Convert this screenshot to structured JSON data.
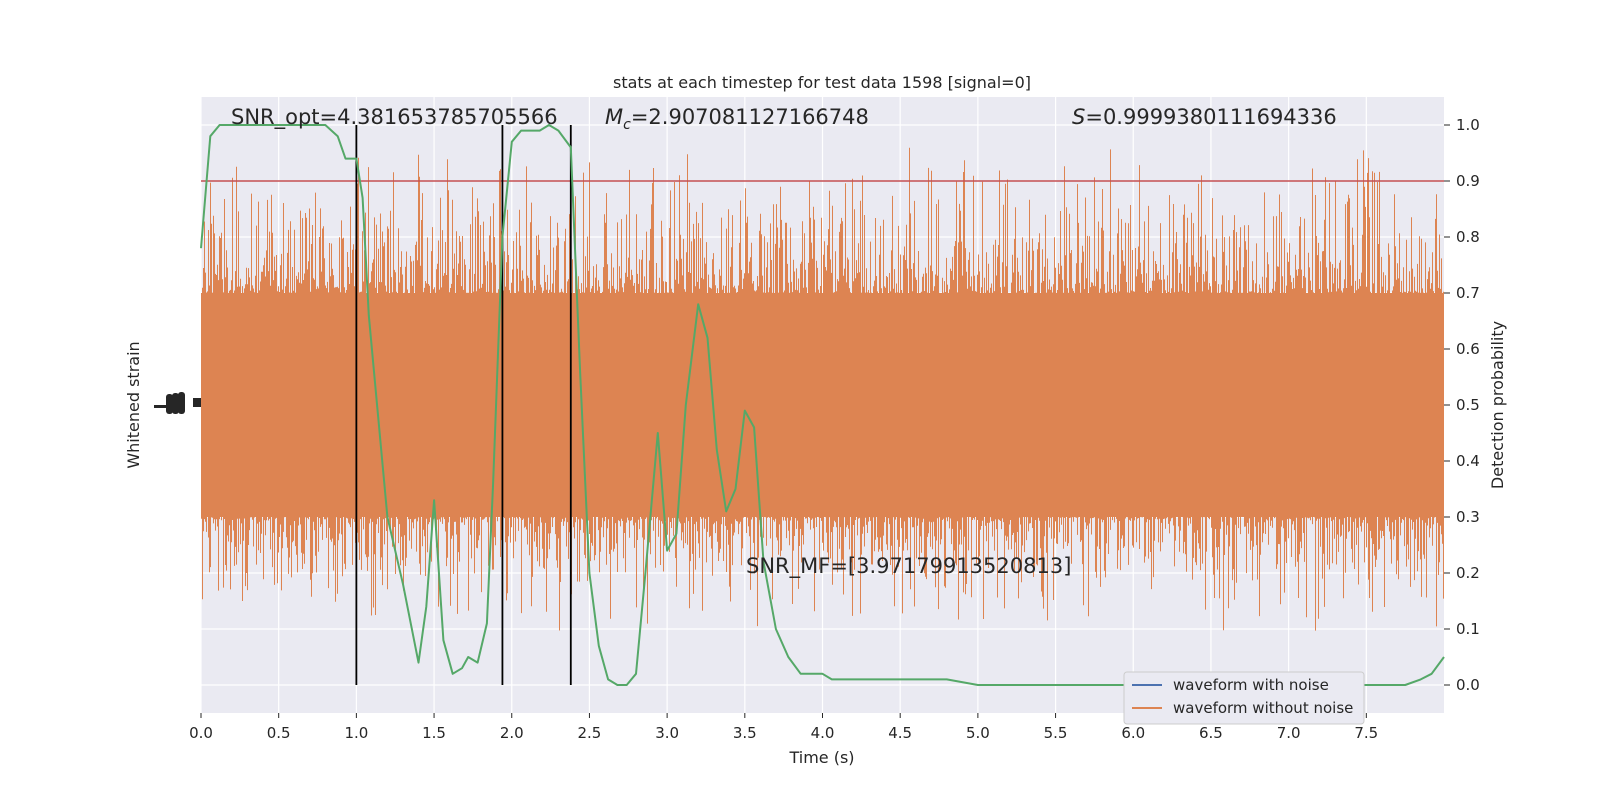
{
  "chart_data": {
    "type": "line",
    "title": "stats at each timestep for test data 1598 [signal=0]",
    "xlabel": "Time (s)",
    "ylabel_left": "Whitened strain",
    "ylabel_right": "Detection probability",
    "xlim": [
      0,
      8.0
    ],
    "ylim_right": [
      -0.05,
      1.05
    ],
    "x_ticks": [
      "0.0",
      "0.5",
      "1.0",
      "1.5",
      "2.0",
      "2.5",
      "3.0",
      "3.5",
      "4.0",
      "4.5",
      "5.0",
      "5.5",
      "6.0",
      "6.5",
      "7.0",
      "7.5"
    ],
    "y_ticks_right": [
      "0.0",
      "0.1",
      "0.2",
      "0.3",
      "0.4",
      "0.5",
      "0.6",
      "0.7",
      "0.8",
      "0.9",
      "1.0"
    ],
    "grid": true,
    "threshold": 0.9,
    "vlines": [
      1.0,
      1.94,
      2.38
    ],
    "annotations": {
      "snr_opt": "SNR_opt=4.381653785705566",
      "mc_symbol": "M",
      "mc_sub": "c",
      "mc_value": "=2.907081127166748",
      "s_symbol": "S",
      "s_value": "=0.9999380111694336",
      "snr_mf": "SNR_MF=[3.97179913520813]"
    },
    "legend": {
      "position": "lower-right",
      "entries": [
        "waveform with noise",
        "waveform without noise"
      ]
    },
    "series": [
      {
        "name": "waveform with noise",
        "color": "#4c72b0",
        "values": []
      },
      {
        "name": "waveform without noise",
        "color": "#dd8452",
        "noise_band": [
          0.3,
          0.7
        ],
        "spike_range": [
          0.08,
          0.98
        ]
      },
      {
        "name": "detection probability",
        "color": "#55a868",
        "x": [
          0.0,
          0.06,
          0.12,
          0.2,
          0.3,
          0.4,
          0.5,
          0.6,
          0.7,
          0.8,
          0.88,
          0.93,
          1.0,
          1.04,
          1.08,
          1.14,
          1.2,
          1.3,
          1.4,
          1.45,
          1.5,
          1.56,
          1.62,
          1.68,
          1.72,
          1.78,
          1.84,
          1.88,
          1.94,
          2.0,
          2.06,
          2.12,
          2.18,
          2.24,
          2.3,
          2.38,
          2.44,
          2.5,
          2.56,
          2.62,
          2.68,
          2.74,
          2.8,
          2.86,
          2.94,
          3.0,
          3.06,
          3.12,
          3.2,
          3.26,
          3.32,
          3.38,
          3.44,
          3.5,
          3.56,
          3.62,
          3.7,
          3.78,
          3.86,
          3.94,
          4.0,
          4.06,
          4.14,
          4.22,
          4.3,
          4.4,
          4.6,
          4.8,
          5.0,
          5.2,
          5.4,
          5.6,
          5.8,
          6.0,
          6.2,
          6.4,
          6.6,
          6.8,
          7.0,
          7.2,
          7.4,
          7.6,
          7.75,
          7.85,
          7.92,
          8.0
        ],
        "y": [
          0.78,
          0.98,
          1.0,
          1.0,
          1.0,
          1.0,
          1.0,
          1.0,
          1.0,
          1.0,
          0.98,
          0.94,
          0.94,
          0.87,
          0.66,
          0.48,
          0.3,
          0.18,
          0.04,
          0.14,
          0.33,
          0.08,
          0.02,
          0.03,
          0.05,
          0.04,
          0.11,
          0.36,
          0.8,
          0.97,
          0.99,
          0.99,
          0.99,
          1.0,
          0.99,
          0.96,
          0.56,
          0.2,
          0.07,
          0.01,
          0.0,
          0.0,
          0.02,
          0.2,
          0.45,
          0.24,
          0.27,
          0.5,
          0.68,
          0.62,
          0.42,
          0.31,
          0.35,
          0.49,
          0.46,
          0.22,
          0.1,
          0.05,
          0.02,
          0.02,
          0.02,
          0.01,
          0.01,
          0.01,
          0.01,
          0.01,
          0.01,
          0.01,
          0.0,
          0.0,
          0.0,
          0.0,
          0.0,
          0.0,
          0.0,
          0.0,
          0.0,
          0.0,
          0.0,
          0.0,
          0.0,
          0.0,
          0.0,
          0.01,
          0.02,
          0.05
        ]
      }
    ],
    "colors": {
      "plot_background": "#eaeaf2",
      "grid": "#ffffff",
      "threshold_line": "#c44e52",
      "vline": "#000000"
    }
  }
}
